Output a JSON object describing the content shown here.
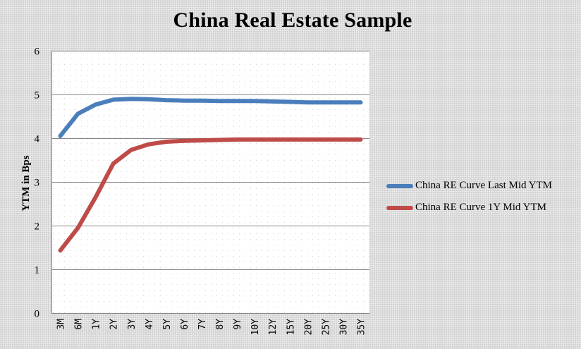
{
  "chart_data": {
    "type": "line",
    "title": "China Real Estate Sample",
    "xlabel": "",
    "ylabel": "YTM in Bps",
    "ylim": [
      0,
      6
    ],
    "yticks": [
      0,
      1,
      2,
      3,
      4,
      5,
      6
    ],
    "grid": {
      "horizontal": true,
      "vertical": false
    },
    "legend_position": "right",
    "categories": [
      "3M",
      "6M",
      "1Y",
      "2Y",
      "3Y",
      "4Y",
      "5Y",
      "6Y",
      "7Y",
      "8Y",
      "9Y",
      "10Y",
      "12Y",
      "15Y",
      "20Y",
      "25Y",
      "30Y",
      "35Y"
    ],
    "series": [
      {
        "name": "China RE Curve Last Mid YTM",
        "color": "#4a7ebb",
        "values": [
          4.05,
          4.56,
          4.77,
          4.88,
          4.9,
          4.89,
          4.87,
          4.86,
          4.86,
          4.85,
          4.85,
          4.85,
          4.84,
          4.83,
          4.82,
          4.82,
          4.82,
          4.82
        ]
      },
      {
        "name": "China RE Curve 1Y Mid YTM",
        "color": "#be4b48",
        "values": [
          1.43,
          1.95,
          2.65,
          3.42,
          3.73,
          3.86,
          3.92,
          3.94,
          3.95,
          3.96,
          3.97,
          3.97,
          3.97,
          3.97,
          3.97,
          3.97,
          3.97,
          3.97
        ]
      }
    ]
  },
  "title": "China Real Estate Sample",
  "legend": {
    "items": [
      {
        "label": "China RE Curve Last Mid YTM",
        "color": "#4a7ebb"
      },
      {
        "label": "China RE Curve 1Y Mid YTM",
        "color": "#be4b48"
      }
    ]
  }
}
